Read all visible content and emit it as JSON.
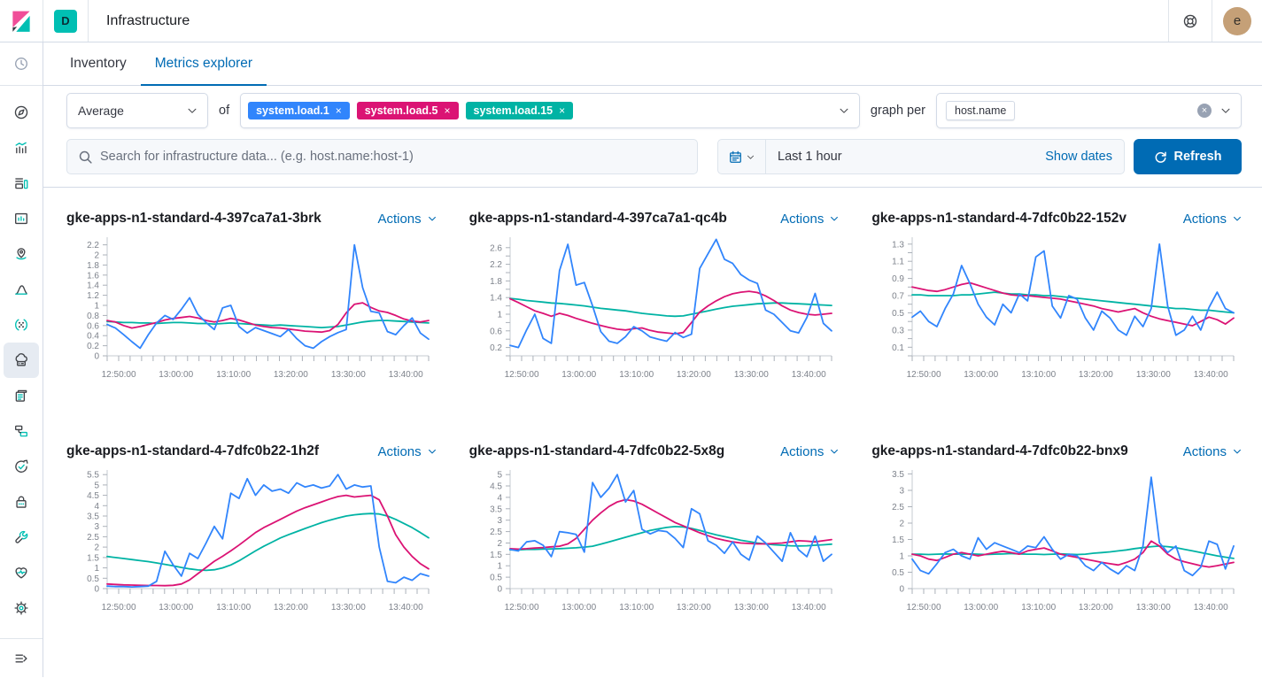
{
  "topbar": {
    "deployment_badge": "D",
    "app_title": "Infrastructure",
    "avatar_initial": "e"
  },
  "tabs": [
    {
      "label": "Inventory",
      "active": false
    },
    {
      "label": "Metrics explorer",
      "active": true
    }
  ],
  "toolbar": {
    "aggregation_value": "Average",
    "of_label": "of",
    "metrics": [
      {
        "label": "system.load.1",
        "color": "#3185FC"
      },
      {
        "label": "system.load.5",
        "color": "#DB1374"
      },
      {
        "label": "system.load.15",
        "color": "#00B3A4"
      }
    ],
    "graph_per_label": "graph per",
    "group_by_value": "host.name"
  },
  "search": {
    "placeholder": "Search for infrastructure data... (e.g. host.name:host-1)"
  },
  "datepicker": {
    "range_label": "Last 1 hour",
    "show_dates_label": "Show dates",
    "refresh_label": "Refresh"
  },
  "sidebar": {
    "top_item": {
      "name": "recent"
    },
    "items": [
      {
        "name": "discover",
        "active": false
      },
      {
        "name": "visualize",
        "active": false
      },
      {
        "name": "dashboard",
        "active": false
      },
      {
        "name": "canvas",
        "active": false
      },
      {
        "name": "maps",
        "active": false
      },
      {
        "name": "machine-learning",
        "active": false
      },
      {
        "name": "graph",
        "active": false
      },
      {
        "name": "infrastructure",
        "active": true
      },
      {
        "name": "logs",
        "active": false
      },
      {
        "name": "apm",
        "active": false
      },
      {
        "name": "uptime",
        "active": false
      },
      {
        "name": "siem",
        "active": false
      },
      {
        "name": "dev-tools",
        "active": false
      },
      {
        "name": "stack-monitoring",
        "active": false
      },
      {
        "name": "management",
        "active": false
      }
    ],
    "bottom_item": {
      "name": "collapse-menu"
    }
  },
  "charts_common": {
    "actions_label": "Actions"
  },
  "chart_data": {
    "type": "line",
    "x_labels": [
      "12:50:00",
      "13:00:00",
      "13:10:00",
      "13:20:00",
      "13:30:00",
      "13:40:00"
    ],
    "series_names": [
      "system.load.1",
      "system.load.5",
      "system.load.15"
    ],
    "series_colors": [
      "#3185FC",
      "#DB1374",
      "#00B3A4"
    ],
    "charts": [
      {
        "title": "gke-apps-n1-standard-4-397ca7a1-3brk",
        "y_max": 2.35,
        "y_ticks": [
          0,
          0.2,
          0.4,
          0.6,
          0.8,
          1,
          1.2,
          1.4,
          1.6,
          1.8,
          2,
          2.2
        ],
        "y_labeled": [
          0,
          0.2,
          0.4,
          0.6,
          0.8,
          1,
          1.2,
          1.4,
          1.6,
          1.8,
          2,
          2.2
        ],
        "series": {
          "system.load.1": [
            0.62,
            0.55,
            0.42,
            0.28,
            0.15,
            0.42,
            0.65,
            0.8,
            0.72,
            0.92,
            1.15,
            0.82,
            0.66,
            0.52,
            0.95,
            1.0,
            0.58,
            0.45,
            0.56,
            0.5,
            0.44,
            0.38,
            0.52,
            0.34,
            0.2,
            0.15,
            0.28,
            0.38,
            0.46,
            0.52,
            2.2,
            1.35,
            0.88,
            0.85,
            0.48,
            0.42,
            0.6,
            0.75,
            0.45,
            0.33
          ],
          "system.load.5": [
            0.7,
            0.67,
            0.6,
            0.55,
            0.58,
            0.62,
            0.66,
            0.71,
            0.74,
            0.76,
            0.78,
            0.75,
            0.7,
            0.67,
            0.7,
            0.74,
            0.71,
            0.66,
            0.61,
            0.58,
            0.56,
            0.55,
            0.53,
            0.51,
            0.49,
            0.48,
            0.47,
            0.5,
            0.62,
            0.85,
            1.02,
            1.05,
            0.96,
            0.89,
            0.86,
            0.8,
            0.73,
            0.69,
            0.67,
            0.7
          ],
          "system.load.15": [
            0.68,
            0.67,
            0.66,
            0.66,
            0.65,
            0.65,
            0.64,
            0.65,
            0.66,
            0.66,
            0.65,
            0.64,
            0.64,
            0.63,
            0.64,
            0.65,
            0.64,
            0.63,
            0.62,
            0.61,
            0.6,
            0.61,
            0.6,
            0.59,
            0.58,
            0.57,
            0.56,
            0.57,
            0.58,
            0.61,
            0.64,
            0.67,
            0.69,
            0.7,
            0.7,
            0.69,
            0.68,
            0.67,
            0.66,
            0.65
          ]
        }
      },
      {
        "title": "gke-apps-n1-standard-4-397ca7a1-qc4b",
        "y_max": 2.85,
        "y_ticks": [
          0,
          0.2,
          0.4,
          0.6,
          0.8,
          1,
          1.2,
          1.4,
          1.6,
          1.8,
          2,
          2.2,
          2.4,
          2.6
        ],
        "y_labeled": [
          0.2,
          0.6,
          1,
          1.4,
          1.8,
          2.2,
          2.6
        ],
        "series": {
          "system.load.1": [
            0.25,
            0.2,
            0.62,
            1.0,
            0.42,
            0.3,
            2.05,
            2.68,
            1.7,
            1.76,
            1.2,
            0.58,
            0.35,
            0.3,
            0.46,
            0.7,
            0.6,
            0.45,
            0.4,
            0.35,
            0.56,
            0.44,
            0.52,
            2.1,
            2.45,
            2.8,
            2.32,
            2.22,
            1.95,
            1.82,
            1.74,
            1.1,
            1.0,
            0.8,
            0.6,
            0.55,
            0.92,
            1.5,
            0.78,
            0.6
          ],
          "system.load.5": [
            1.37,
            1.28,
            1.18,
            1.08,
            1.02,
            0.95,
            1.02,
            0.97,
            0.9,
            0.84,
            0.78,
            0.73,
            0.68,
            0.64,
            0.62,
            0.65,
            0.67,
            0.61,
            0.57,
            0.55,
            0.53,
            0.56,
            0.8,
            1.05,
            1.2,
            1.32,
            1.42,
            1.49,
            1.53,
            1.55,
            1.52,
            1.44,
            1.33,
            1.2,
            1.1,
            1.04,
            1.0,
            0.98,
            1.0,
            1.02
          ],
          "system.load.15": [
            1.38,
            1.36,
            1.33,
            1.31,
            1.29,
            1.27,
            1.26,
            1.24,
            1.22,
            1.2,
            1.17,
            1.14,
            1.12,
            1.1,
            1.08,
            1.05,
            1.02,
            1.0,
            0.98,
            0.96,
            0.95,
            0.96,
            1.0,
            1.04,
            1.08,
            1.12,
            1.16,
            1.19,
            1.21,
            1.23,
            1.25,
            1.26,
            1.27,
            1.27,
            1.26,
            1.25,
            1.24,
            1.23,
            1.22,
            1.21
          ]
        }
      },
      {
        "title": "gke-apps-n1-standard-4-7dfc0b22-152v",
        "y_max": 1.38,
        "y_ticks": [
          0,
          0.1,
          0.2,
          0.3,
          0.4,
          0.5,
          0.6,
          0.7,
          0.8,
          0.9,
          1,
          1.1,
          1.2,
          1.3
        ],
        "y_labeled": [
          0.1,
          0.3,
          0.5,
          0.7,
          0.9,
          1.1,
          1.3
        ],
        "series": {
          "system.load.1": [
            0.45,
            0.52,
            0.4,
            0.34,
            0.55,
            0.72,
            1.05,
            0.84,
            0.6,
            0.45,
            0.36,
            0.6,
            0.5,
            0.72,
            0.64,
            1.15,
            1.22,
            0.58,
            0.44,
            0.7,
            0.66,
            0.44,
            0.3,
            0.52,
            0.44,
            0.3,
            0.24,
            0.46,
            0.34,
            0.55,
            1.3,
            0.58,
            0.24,
            0.3,
            0.46,
            0.3,
            0.56,
            0.74,
            0.55,
            0.5
          ],
          "system.load.5": [
            0.8,
            0.78,
            0.76,
            0.75,
            0.77,
            0.8,
            0.83,
            0.85,
            0.82,
            0.79,
            0.76,
            0.73,
            0.71,
            0.7,
            0.7,
            0.69,
            0.68,
            0.67,
            0.66,
            0.64,
            0.62,
            0.6,
            0.58,
            0.55,
            0.53,
            0.51,
            0.53,
            0.55,
            0.5,
            0.46,
            0.43,
            0.41,
            0.39,
            0.37,
            0.35,
            0.4,
            0.45,
            0.42,
            0.37,
            0.44
          ],
          "system.load.15": [
            0.71,
            0.71,
            0.7,
            0.7,
            0.7,
            0.7,
            0.71,
            0.71,
            0.72,
            0.73,
            0.74,
            0.73,
            0.72,
            0.72,
            0.71,
            0.71,
            0.7,
            0.7,
            0.69,
            0.68,
            0.67,
            0.66,
            0.65,
            0.64,
            0.63,
            0.62,
            0.61,
            0.6,
            0.59,
            0.58,
            0.57,
            0.56,
            0.55,
            0.55,
            0.54,
            0.53,
            0.53,
            0.52,
            0.51,
            0.5
          ]
        }
      },
      {
        "title": "gke-apps-n1-standard-4-7dfc0b22-1h2f",
        "y_max": 5.72,
        "y_ticks": [
          0,
          0.5,
          1,
          1.5,
          2,
          2.5,
          3,
          3.5,
          4,
          4.5,
          5,
          5.5
        ],
        "y_labeled": [
          0,
          0.5,
          1,
          1.5,
          2,
          2.5,
          3,
          3.5,
          4,
          4.5,
          5,
          5.5
        ],
        "series": {
          "system.load.1": [
            0.12,
            0.1,
            0.1,
            0.08,
            0.1,
            0.12,
            0.35,
            1.8,
            1.15,
            0.6,
            1.7,
            1.45,
            2.2,
            3.0,
            2.4,
            4.6,
            4.35,
            5.3,
            4.5,
            5.0,
            4.7,
            4.8,
            4.6,
            5.1,
            4.9,
            5.0,
            4.85,
            4.95,
            5.5,
            4.8,
            5.0,
            4.9,
            4.95,
            2.0,
            0.35,
            0.28,
            0.55,
            0.4,
            0.72,
            0.6
          ],
          "system.load.5": [
            0.22,
            0.2,
            0.18,
            0.17,
            0.16,
            0.15,
            0.15,
            0.14,
            0.16,
            0.22,
            0.42,
            0.72,
            1.02,
            1.32,
            1.56,
            1.82,
            2.1,
            2.4,
            2.7,
            2.94,
            3.14,
            3.34,
            3.54,
            3.74,
            3.9,
            4.04,
            4.18,
            4.32,
            4.44,
            4.5,
            4.42,
            4.46,
            4.5,
            4.28,
            3.5,
            2.6,
            2.0,
            1.55,
            1.2,
            0.95
          ],
          "system.load.15": [
            1.55,
            1.5,
            1.45,
            1.4,
            1.35,
            1.3,
            1.24,
            1.17,
            1.1,
            1.02,
            0.95,
            0.9,
            0.88,
            0.91,
            1.0,
            1.14,
            1.34,
            1.58,
            1.82,
            2.04,
            2.24,
            2.44,
            2.6,
            2.75,
            2.9,
            3.04,
            3.18,
            3.3,
            3.4,
            3.5,
            3.56,
            3.6,
            3.62,
            3.6,
            3.5,
            3.34,
            3.14,
            2.94,
            2.7,
            2.45
          ]
        }
      },
      {
        "title": "gke-apps-n1-standard-4-7dfc0b22-5x8g",
        "y_max": 5.2,
        "y_ticks": [
          0,
          0.5,
          1,
          1.5,
          2,
          2.5,
          3,
          3.5,
          4,
          4.5,
          5
        ],
        "y_labeled": [
          0,
          0.5,
          1,
          1.5,
          2,
          2.5,
          3,
          3.5,
          4,
          4.5,
          5
        ],
        "series": {
          "system.load.1": [
            1.72,
            1.65,
            2.05,
            2.1,
            1.9,
            1.4,
            2.5,
            2.45,
            2.38,
            1.6,
            4.65,
            4.0,
            4.4,
            5.0,
            3.8,
            4.3,
            2.6,
            2.4,
            2.55,
            2.5,
            2.2,
            1.8,
            3.5,
            3.28,
            2.1,
            1.9,
            1.55,
            2.05,
            1.5,
            1.25,
            2.3,
            2.0,
            1.6,
            1.2,
            2.45,
            1.7,
            1.4,
            2.3,
            1.2,
            1.5
          ],
          "system.load.5": [
            1.75,
            1.73,
            1.75,
            1.78,
            1.8,
            1.83,
            1.86,
            1.96,
            2.2,
            2.6,
            3.0,
            3.32,
            3.6,
            3.8,
            3.9,
            3.84,
            3.7,
            3.5,
            3.3,
            3.1,
            2.9,
            2.75,
            2.6,
            2.45,
            2.32,
            2.2,
            2.12,
            2.05,
            2.0,
            1.98,
            1.96,
            1.96,
            1.98,
            2.0,
            2.05,
            2.1,
            2.08,
            2.05,
            2.1,
            2.15
          ],
          "system.load.15": [
            1.7,
            1.7,
            1.72,
            1.72,
            1.73,
            1.74,
            1.75,
            1.77,
            1.79,
            1.82,
            1.86,
            1.95,
            2.05,
            2.15,
            2.25,
            2.35,
            2.45,
            2.55,
            2.62,
            2.68,
            2.72,
            2.7,
            2.64,
            2.55,
            2.45,
            2.36,
            2.28,
            2.2,
            2.12,
            2.06,
            2.0,
            1.96,
            1.92,
            1.9,
            1.88,
            1.87,
            1.88,
            1.9,
            1.92,
            1.95
          ]
        }
      },
      {
        "title": "gke-apps-n1-standard-4-7dfc0b22-bnx9",
        "y_max": 3.62,
        "y_ticks": [
          0,
          0.5,
          1,
          1.5,
          2,
          2.5,
          3,
          3.5
        ],
        "y_labeled": [
          0,
          0.5,
          1,
          1.5,
          2,
          2.5,
          3,
          3.5
        ],
        "series": {
          "system.load.1": [
            0.9,
            0.55,
            0.45,
            0.76,
            1.1,
            1.2,
            1.0,
            0.9,
            1.55,
            1.2,
            1.4,
            1.3,
            1.2,
            1.1,
            1.3,
            1.25,
            1.58,
            1.2,
            0.9,
            1.05,
            1.0,
            0.7,
            0.55,
            0.8,
            0.6,
            0.45,
            0.7,
            0.55,
            1.3,
            3.4,
            1.4,
            1.1,
            1.3,
            0.55,
            0.4,
            0.65,
            1.45,
            1.35,
            0.6,
            1.3
          ],
          "system.load.5": [
            1.05,
            1.0,
            0.9,
            0.86,
            0.95,
            1.05,
            1.1,
            1.05,
            1.0,
            1.05,
            1.1,
            1.14,
            1.1,
            1.05,
            1.15,
            1.2,
            1.24,
            1.15,
            1.05,
            1.0,
            0.95,
            0.9,
            0.85,
            0.8,
            0.76,
            0.72,
            0.8,
            0.9,
            1.1,
            1.45,
            1.3,
            1.05,
            0.9,
            0.82,
            0.76,
            0.7,
            0.66,
            0.7,
            0.75,
            0.8
          ],
          "system.load.15": [
            1.05,
            1.05,
            1.04,
            1.05,
            1.06,
            1.05,
            1.05,
            1.06,
            1.05,
            1.04,
            1.05,
            1.06,
            1.07,
            1.06,
            1.05,
            1.05,
            1.04,
            1.05,
            1.06,
            1.05,
            1.04,
            1.05,
            1.08,
            1.1,
            1.12,
            1.15,
            1.18,
            1.22,
            1.25,
            1.28,
            1.3,
            1.28,
            1.25,
            1.2,
            1.15,
            1.1,
            1.05,
            1.0,
            0.96,
            0.92
          ]
        }
      }
    ]
  }
}
